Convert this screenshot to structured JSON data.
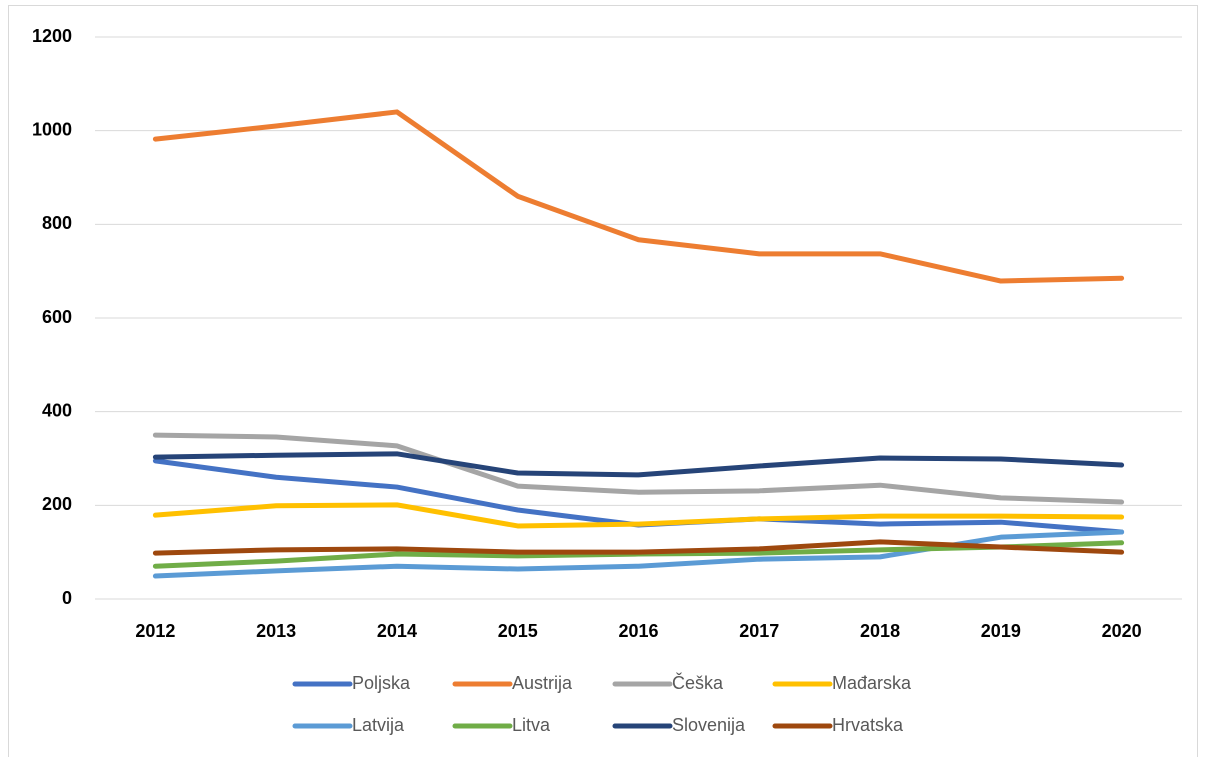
{
  "chart_data": {
    "type": "line",
    "categories": [
      "2012",
      "2013",
      "2014",
      "2015",
      "2016",
      "2017",
      "2018",
      "2019",
      "2020"
    ],
    "series": [
      {
        "name": "Poljska",
        "color": "#4472c4",
        "values": [
          295,
          260,
          239,
          190,
          158,
          171,
          160,
          164,
          143
        ]
      },
      {
        "name": "Austrija",
        "color": "#ed7d31",
        "values": [
          982,
          1010,
          1040,
          860,
          767,
          737,
          737,
          679,
          685
        ]
      },
      {
        "name": "Češka",
        "color": "#a5a5a5",
        "values": [
          350,
          346,
          327,
          241,
          228,
          231,
          243,
          216,
          207
        ]
      },
      {
        "name": "Mađarska",
        "color": "#ffc000",
        "values": [
          179,
          199,
          201,
          156,
          160,
          171,
          177,
          177,
          175
        ]
      },
      {
        "name": "Latvija",
        "color": "#5b9bd5",
        "values": [
          49,
          60,
          70,
          64,
          70,
          85,
          90,
          132,
          143
        ]
      },
      {
        "name": "Litva",
        "color": "#70ad47",
        "values": [
          70,
          81,
          96,
          92,
          96,
          98,
          105,
          111,
          120
        ]
      },
      {
        "name": "Slovenija",
        "color": "#264478",
        "values": [
          303,
          307,
          310,
          269,
          265,
          284,
          301,
          299,
          286
        ]
      },
      {
        "name": "Hrvatska",
        "color": "#9e480e",
        "values": [
          98,
          105,
          107,
          100,
          100,
          107,
          122,
          111,
          100
        ]
      }
    ],
    "ylim": [
      0,
      1200
    ],
    "yticks": [
      0,
      200,
      400,
      600,
      800,
      1000,
      1200
    ],
    "grid": true,
    "legend": "bottom"
  }
}
